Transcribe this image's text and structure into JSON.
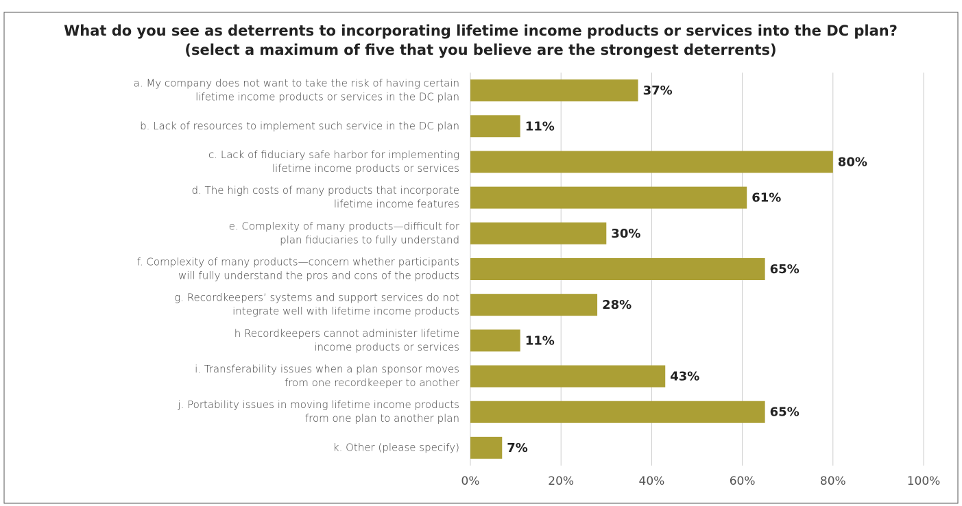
{
  "chart_data": {
    "type": "bar",
    "orientation": "horizontal",
    "title": "What do you see as deterrents to incorporating lifetime income products or services into the DC plan?",
    "subtitle": "(select a maximum of five that you believe are the strongest deterrents)",
    "categories": [
      [
        "a.  My company does not want to take the risk of having certain",
        "lifetime income products or services in the DC plan"
      ],
      [
        "b.  Lack of resources to implement such service in the DC plan"
      ],
      [
        "c.  Lack of fiduciary safe harbor for implementing",
        "lifetime income products or services"
      ],
      [
        "d.  The high costs of many products that incorporate",
        "lifetime income features"
      ],
      [
        "e.  Complexity of many products—difficult for",
        "plan fiduciaries to fully understand"
      ],
      [
        "f.  Complexity of many products—concern whether participants",
        "will fully understand the pros and cons of the products"
      ],
      [
        "g.  Recordkeepers’ systems and support services do not",
        "integrate well with lifetime income products"
      ],
      [
        "h  Recordkeepers cannot administer lifetime",
        "income products or services"
      ],
      [
        "i.  Transferability issues when a plan sponsor moves",
        "from one recordkeeper to another"
      ],
      [
        "j.  Portability issues in moving lifetime income products",
        "from one plan to another plan"
      ],
      [
        "k.  Other (please specify)"
      ]
    ],
    "values": [
      37,
      11,
      80,
      61,
      30,
      65,
      28,
      11,
      43,
      65,
      7
    ],
    "value_labels": [
      "37%",
      "11%",
      "80%",
      "61%",
      "30%",
      "65%",
      "28%",
      "11%",
      "43%",
      "65%",
      "7%"
    ],
    "color": "#ab9f35",
    "xlim": [
      0,
      100
    ],
    "xticks": [
      {
        "value": 0,
        "label": "0%"
      },
      {
        "value": 20,
        "label": "20%"
      },
      {
        "value": 40,
        "label": "40%"
      },
      {
        "value": 60,
        "label": "60%"
      },
      {
        "value": 80,
        "label": "80%"
      },
      {
        "value": 100,
        "label": "100%"
      }
    ],
    "grid": true
  }
}
